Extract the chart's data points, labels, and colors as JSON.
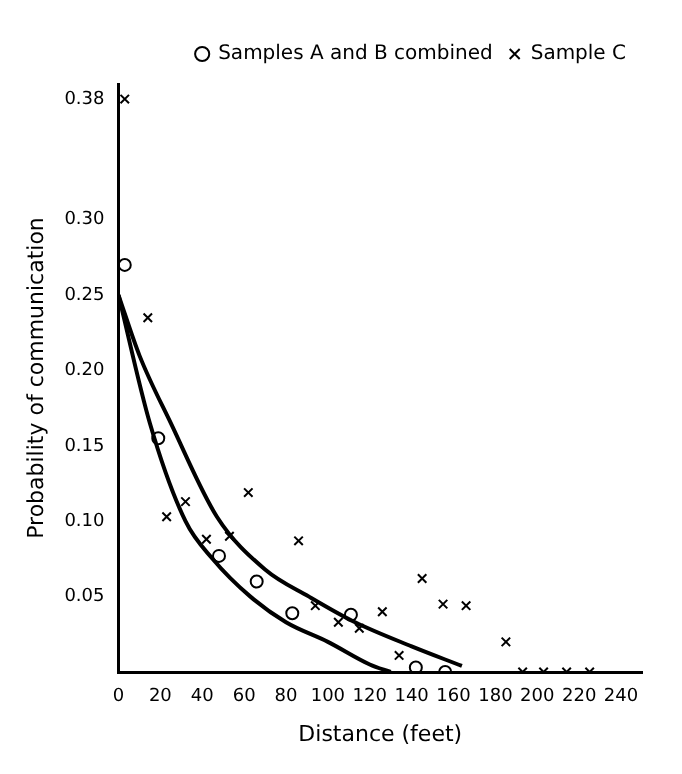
{
  "chart_data": {
    "type": "scatter",
    "xlabel": "Distance (feet)",
    "ylabel": "Probability of communication",
    "xlim": [
      0,
      250
    ],
    "xticks": [
      0,
      20,
      40,
      60,
      80,
      100,
      120,
      140,
      160,
      180,
      200,
      220,
      240
    ],
    "ylim": [
      0,
      0.39
    ],
    "yticks": [
      0.05,
      {
        "value": 0.1,
        "label": "0.10"
      },
      0.15,
      {
        "value": 0.2,
        "label": "0.20"
      },
      0.25,
      {
        "value": 0.3,
        "label": "0.30"
      },
      0.38
    ],
    "grid": false,
    "legend": "top right",
    "series": [
      {
        "name": "Samples A and B combined",
        "marker": "circle",
        "color": "#000000",
        "x": [
          3,
          19,
          48,
          66,
          83,
          111,
          142,
          156
        ],
        "values": [
          0.27,
          0.155,
          0.077,
          0.06,
          0.039,
          0.038,
          0.003,
          0.0
        ]
      },
      {
        "name": "Sample C",
        "marker": "cross",
        "color": "#000000",
        "x": [
          3,
          14,
          23,
          32,
          42,
          53,
          62,
          86,
          94,
          105,
          115,
          126,
          134,
          145,
          155,
          166,
          185,
          193,
          203,
          214,
          225
        ],
        "values": [
          0.38,
          0.235,
          0.103,
          0.113,
          0.088,
          0.09,
          0.119,
          0.087,
          0.044,
          0.033,
          0.029,
          0.04,
          0.011,
          0.062,
          0.045,
          0.044,
          0.02,
          0.0,
          0.0,
          0.0,
          0.0
        ]
      },
      {
        "type": "line",
        "marker": "none",
        "color": "#000000",
        "x": [
          0,
          15,
          32,
          45,
          63,
          80,
          100,
          120,
          130
        ],
        "values": [
          0.25,
          0.165,
          0.1,
          0.075,
          0.05,
          0.033,
          0.02,
          0.005,
          0.0
        ]
      },
      {
        "type": "line",
        "marker": "none",
        "color": "#000000",
        "x": [
          0,
          10,
          25,
          47,
          70,
          91,
          113,
          140,
          164
        ],
        "values": [
          0.25,
          0.21,
          0.165,
          0.103,
          0.068,
          0.05,
          0.033,
          0.017,
          0.004
        ]
      }
    ]
  }
}
